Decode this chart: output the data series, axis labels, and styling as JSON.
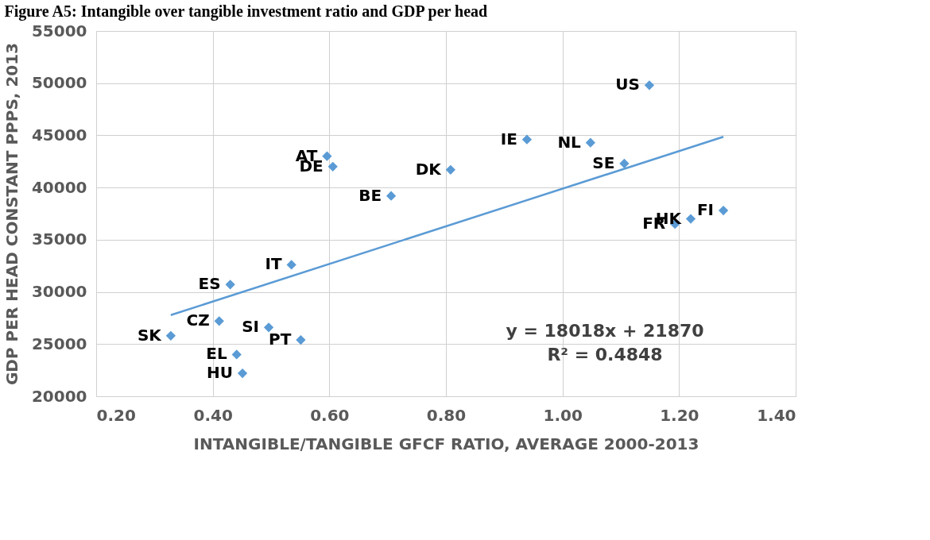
{
  "chart_data": {
    "type": "scatter",
    "title": "Figure A5: Intangible over tangible investment ratio and GDP per head",
    "xlabel": "INTANGIBLE/TANGIBLE GFCF RATIO, AVERAGE 2000-2013",
    "ylabel": "GDP PER HEAD CONSTANT PPPS, 2013",
    "xlim": [
      0.2,
      1.4
    ],
    "xticks": [
      {
        "value": 0.2,
        "label": "0.20"
      },
      {
        "value": 0.4,
        "label": "0.40"
      },
      {
        "value": 0.6,
        "label": "0.60"
      },
      {
        "value": 0.8,
        "label": "0.80"
      },
      {
        "value": 1.0,
        "label": "1.00"
      },
      {
        "value": 1.2,
        "label": "1.20"
      },
      {
        "value": 1.4,
        "label": "1.40"
      }
    ],
    "ylim": [
      20000,
      55000
    ],
    "yticks": [
      20000,
      25000,
      30000,
      35000,
      40000,
      45000,
      50000,
      55000
    ],
    "grid": true,
    "marker": "diamond",
    "series": [
      {
        "color": "#5b9bd5",
        "x": [
          1.149,
          0.939,
          1.048,
          1.106,
          0.596,
          0.606,
          0.808,
          0.706,
          1.193,
          1.22,
          1.276,
          0.43,
          0.535,
          0.411,
          0.496,
          0.328,
          0.551,
          0.441,
          0.451
        ],
        "values": [
          49800,
          44600,
          44300,
          42300,
          43000,
          42000,
          41700,
          39200,
          36500,
          37000,
          37800,
          30700,
          32600,
          27200,
          26600,
          25800,
          25400,
          24000,
          22200
        ]
      },
      {
        "type": "line",
        "color": "#5b9bd5",
        "line_style": "solid",
        "marker": "none",
        "x": [
          0.328,
          1.276
        ],
        "values": [
          27780,
          44860
        ]
      }
    ],
    "annotations": [
      {
        "text": "US",
        "x": 1.149,
        "y": 49800
      },
      {
        "text": "IE",
        "x": 0.939,
        "y": 44600
      },
      {
        "text": "NL",
        "x": 1.048,
        "y": 44300
      },
      {
        "text": "SE",
        "x": 1.106,
        "y": 42300
      },
      {
        "text": "AT",
        "x": 0.596,
        "y": 43000
      },
      {
        "text": "DE",
        "x": 0.606,
        "y": 42000
      },
      {
        "text": "DK",
        "x": 0.808,
        "y": 41700
      },
      {
        "text": "BE",
        "x": 0.706,
        "y": 39200
      },
      {
        "text": "FR",
        "x": 1.193,
        "y": 36500
      },
      {
        "text": "HK",
        "x": 1.22,
        "y": 37000
      },
      {
        "text": "FI",
        "x": 1.276,
        "y": 37800
      },
      {
        "text": "ES",
        "x": 0.43,
        "y": 30700
      },
      {
        "text": "IT",
        "x": 0.535,
        "y": 32600
      },
      {
        "text": "CZ",
        "x": 0.411,
        "y": 27200
      },
      {
        "text": "SI",
        "x": 0.496,
        "y": 26600
      },
      {
        "text": "SK",
        "x": 0.328,
        "y": 25800
      },
      {
        "text": "PT",
        "x": 0.551,
        "y": 25400
      },
      {
        "text": "EL",
        "x": 0.441,
        "y": 24000
      },
      {
        "text": "HU",
        "x": 0.451,
        "y": 22200
      },
      "y = 18018x + 21870",
      "R² = 0.4848"
    ]
  }
}
